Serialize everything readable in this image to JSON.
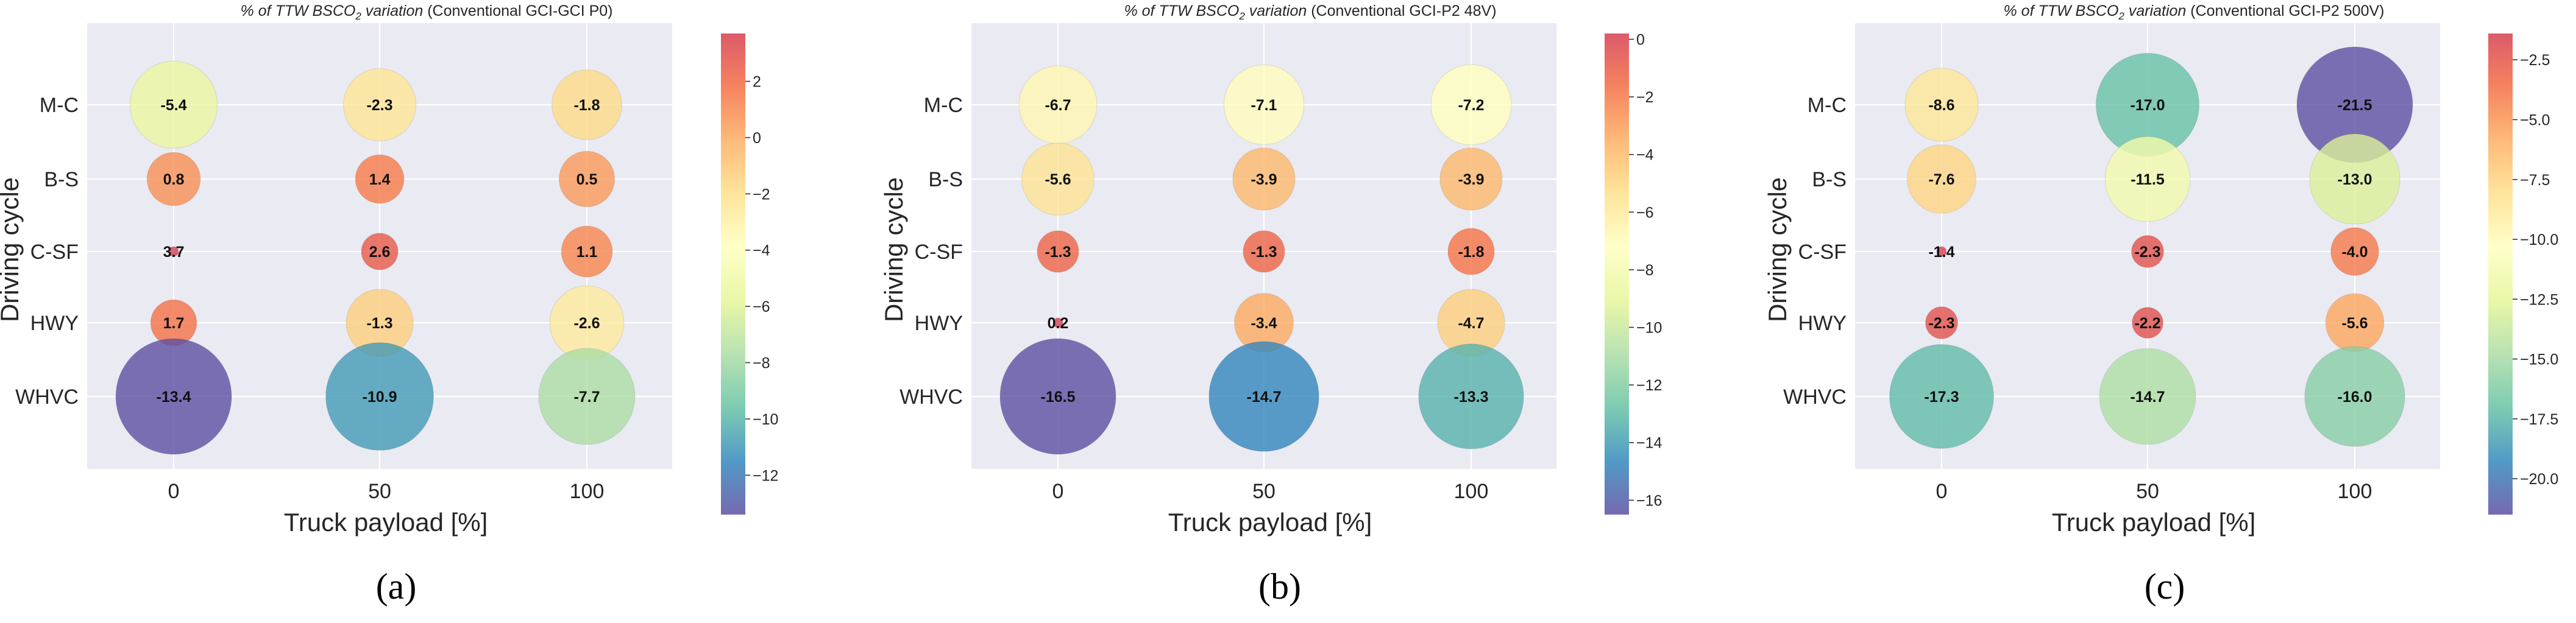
{
  "chart_data": [
    {
      "type": "scatter",
      "title_prefix": "% of TTW BSCO",
      "title_sub": "2",
      "title_mid": " variation",
      "title_suffix": "(Conventional GCI-GCI P0)",
      "xlabel": "Truck payload [%]",
      "ylabel": "Driving cycle",
      "x_ticks": [
        "0",
        "50",
        "100"
      ],
      "y_categories": [
        "M-C",
        "B-S",
        "C-SF",
        "HWY",
        "WHVC"
      ],
      "colorbar_ticks": [
        "2",
        "0",
        "−2",
        "−4",
        "−6",
        "−8",
        "−10",
        "−12"
      ],
      "colorbar_range": [
        -13.4,
        3.7
      ],
      "grid": true,
      "panel_label": "(a)",
      "points": [
        {
          "x": 0,
          "y": "M-C",
          "value": -5.4,
          "label": "-5.4"
        },
        {
          "x": 50,
          "y": "M-C",
          "value": -2.3,
          "label": "-2.3"
        },
        {
          "x": 100,
          "y": "M-C",
          "value": -1.8,
          "label": "-1.8"
        },
        {
          "x": 0,
          "y": "B-S",
          "value": 0.8,
          "label": "0.8"
        },
        {
          "x": 50,
          "y": "B-S",
          "value": 1.4,
          "label": "1.4"
        },
        {
          "x": 100,
          "y": "B-S",
          "value": 0.5,
          "label": "0.5"
        },
        {
          "x": 0,
          "y": "C-SF",
          "value": 3.7,
          "label": "3.7"
        },
        {
          "x": 50,
          "y": "C-SF",
          "value": 2.6,
          "label": "2.6"
        },
        {
          "x": 100,
          "y": "C-SF",
          "value": 1.1,
          "label": "1.1"
        },
        {
          "x": 0,
          "y": "HWY",
          "value": 1.7,
          "label": "1.7"
        },
        {
          "x": 50,
          "y": "HWY",
          "value": -1.3,
          "label": "-1.3"
        },
        {
          "x": 100,
          "y": "HWY",
          "value": -2.6,
          "label": "-2.6"
        },
        {
          "x": 0,
          "y": "WHVC",
          "value": -13.4,
          "label": "-13.4"
        },
        {
          "x": 50,
          "y": "WHVC",
          "value": -10.9,
          "label": "-10.9"
        },
        {
          "x": 100,
          "y": "WHVC",
          "value": -7.7,
          "label": "-7.7"
        }
      ]
    },
    {
      "type": "scatter",
      "title_prefix": "% of TTW BSCO",
      "title_sub": "2",
      "title_mid": " variation",
      "title_suffix": "(Conventional GCI-P2 48V)",
      "xlabel": "Truck payload [%]",
      "ylabel": "Driving cycle",
      "x_ticks": [
        "0",
        "50",
        "100"
      ],
      "y_categories": [
        "M-C",
        "B-S",
        "C-SF",
        "HWY",
        "WHVC"
      ],
      "colorbar_ticks": [
        "0",
        "−2",
        "−4",
        "−6",
        "−8",
        "−10",
        "−12",
        "−14",
        "−16"
      ],
      "colorbar_range": [
        -16.5,
        0.2
      ],
      "grid": true,
      "panel_label": "(b)",
      "points": [
        {
          "x": 0,
          "y": "M-C",
          "value": -6.7,
          "label": "-6.7"
        },
        {
          "x": 50,
          "y": "M-C",
          "value": -7.1,
          "label": "-7.1"
        },
        {
          "x": 100,
          "y": "M-C",
          "value": -7.2,
          "label": "-7.2"
        },
        {
          "x": 0,
          "y": "B-S",
          "value": -5.6,
          "label": "-5.6"
        },
        {
          "x": 50,
          "y": "B-S",
          "value": -3.9,
          "label": "-3.9"
        },
        {
          "x": 100,
          "y": "B-S",
          "value": -3.9,
          "label": "-3.9"
        },
        {
          "x": 0,
          "y": "C-SF",
          "value": -1.3,
          "label": "-1.3"
        },
        {
          "x": 50,
          "y": "C-SF",
          "value": -1.3,
          "label": "-1.3"
        },
        {
          "x": 100,
          "y": "C-SF",
          "value": -1.8,
          "label": "-1.8"
        },
        {
          "x": 0,
          "y": "HWY",
          "value": 0.2,
          "label": "0.2"
        },
        {
          "x": 50,
          "y": "HWY",
          "value": -3.4,
          "label": "-3.4"
        },
        {
          "x": 100,
          "y": "HWY",
          "value": -4.7,
          "label": "-4.7"
        },
        {
          "x": 0,
          "y": "WHVC",
          "value": -16.5,
          "label": "-16.5"
        },
        {
          "x": 50,
          "y": "WHVC",
          "value": -14.7,
          "label": "-14.7"
        },
        {
          "x": 100,
          "y": "WHVC",
          "value": -13.3,
          "label": "-13.3"
        }
      ]
    },
    {
      "type": "scatter",
      "title_prefix": "% of TTW BSCO",
      "title_sub": "2",
      "title_mid": " variation",
      "title_suffix": "(Conventional GCI-P2 500V)",
      "xlabel": "Truck payload [%]",
      "ylabel": "Driving cycle",
      "x_ticks": [
        "0",
        "50",
        "100"
      ],
      "y_categories": [
        "M-C",
        "B-S",
        "C-SF",
        "HWY",
        "WHVC"
      ],
      "colorbar_ticks": [
        "−2.5",
        "−5.0",
        "−7.5",
        "−10.0",
        "−12.5",
        "−15.0",
        "−17.5",
        "−20.0"
      ],
      "colorbar_range": [
        -21.5,
        -1.4
      ],
      "grid": true,
      "panel_label": "(c)",
      "points": [
        {
          "x": 0,
          "y": "M-C",
          "value": -8.6,
          "label": "-8.6"
        },
        {
          "x": 50,
          "y": "M-C",
          "value": -17.0,
          "label": "-17.0"
        },
        {
          "x": 100,
          "y": "M-C",
          "value": -21.5,
          "label": "-21.5"
        },
        {
          "x": 0,
          "y": "B-S",
          "value": -7.6,
          "label": "-7.6"
        },
        {
          "x": 50,
          "y": "B-S",
          "value": -11.5,
          "label": "-11.5"
        },
        {
          "x": 100,
          "y": "B-S",
          "value": -13.0,
          "label": "-13.0"
        },
        {
          "x": 0,
          "y": "C-SF",
          "value": -1.4,
          "label": "-1.4"
        },
        {
          "x": 50,
          "y": "C-SF",
          "value": -2.3,
          "label": "-2.3"
        },
        {
          "x": 100,
          "y": "C-SF",
          "value": -4.0,
          "label": "-4.0"
        },
        {
          "x": 0,
          "y": "HWY",
          "value": -2.3,
          "label": "-2.3"
        },
        {
          "x": 50,
          "y": "HWY",
          "value": -2.2,
          "label": "-2.2"
        },
        {
          "x": 100,
          "y": "HWY",
          "value": -5.6,
          "label": "-5.6"
        },
        {
          "x": 0,
          "y": "WHVC",
          "value": -17.3,
          "label": "-17.3"
        },
        {
          "x": 50,
          "y": "WHVC",
          "value": -14.7,
          "label": "-14.7"
        },
        {
          "x": 100,
          "y": "WHVC",
          "value": -16.0,
          "label": "-16.0"
        }
      ]
    }
  ],
  "colormap": [
    "#5e4fa2",
    "#3288bd",
    "#66c2a5",
    "#abdda4",
    "#e6f598",
    "#ffffbf",
    "#fee08b",
    "#fdae61",
    "#f46d43",
    "#d53e4f"
  ],
  "colors": {
    "plot_bg": "#eaeaf2",
    "grid": "#ffffff",
    "text": "#262626"
  }
}
